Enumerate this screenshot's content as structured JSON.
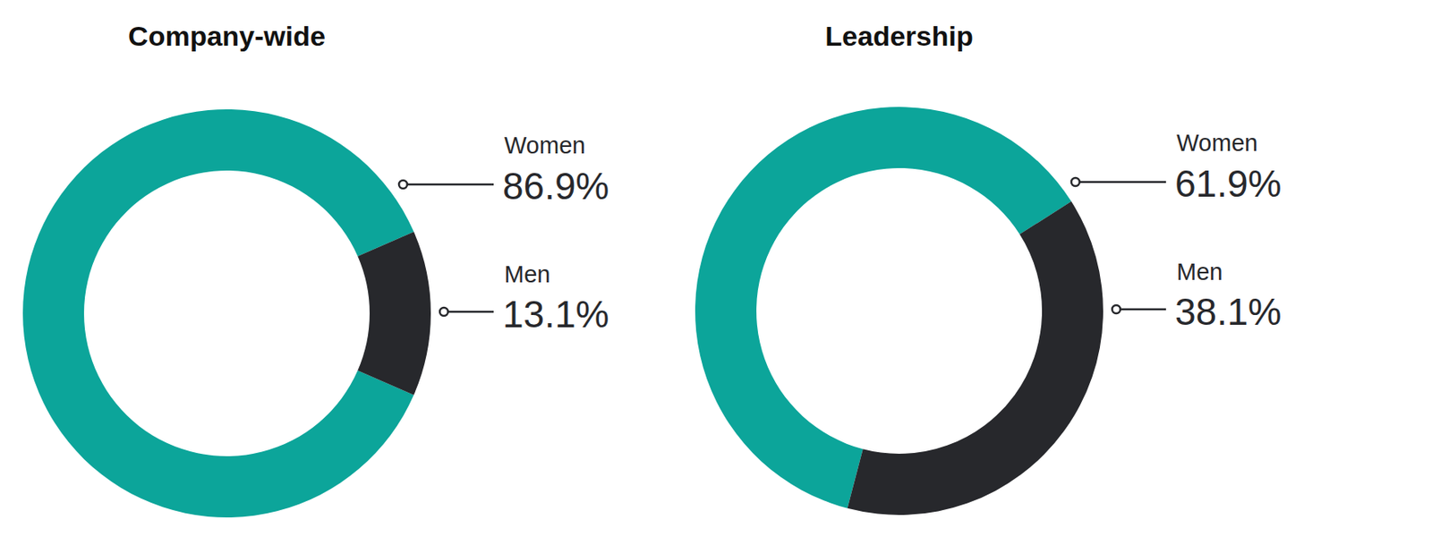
{
  "chart_data": [
    {
      "type": "donut",
      "title": "Company-wide",
      "categories": [
        "Women",
        "Men"
      ],
      "values": [
        86.9,
        13.1
      ],
      "value_labels": [
        "86.9%",
        "13.1%"
      ],
      "data_labels": true,
      "colors": [
        "#0ca59a",
        "#27282c"
      ]
    },
    {
      "type": "donut",
      "title": "Leadership",
      "categories": [
        "Women",
        "Men"
      ],
      "values": [
        61.9,
        38.1
      ],
      "value_labels": [
        "61.9%",
        "38.1%"
      ],
      "data_labels": true,
      "colors": [
        "#0ca59a",
        "#27282c"
      ]
    }
  ]
}
